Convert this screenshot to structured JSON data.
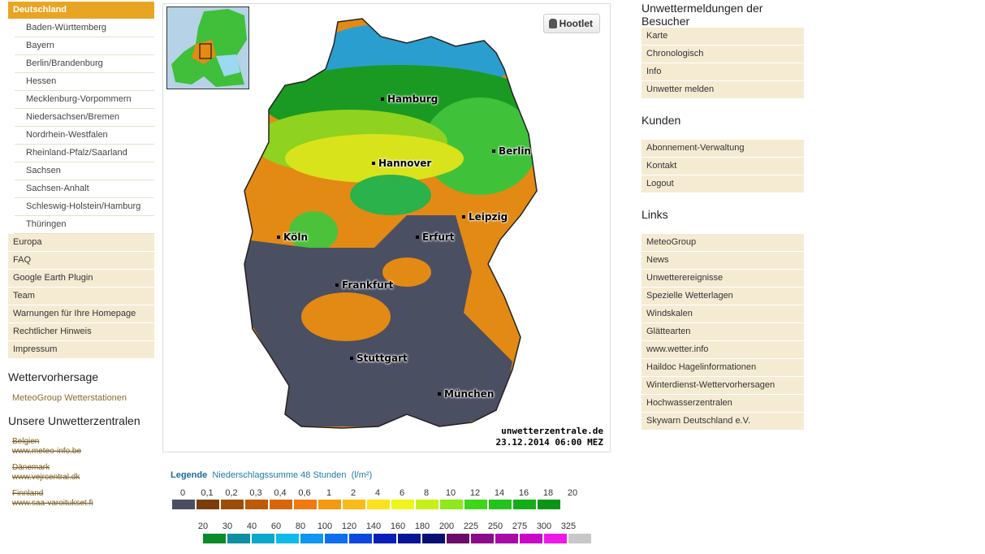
{
  "left_nav": {
    "active": "Deutschland",
    "states": [
      "Baden-Württemberg",
      "Bayern",
      "Berlin/Brandenburg",
      "Hessen",
      "Mecklenburg-Vorpommern",
      "Niedersachsen/Bremen",
      "Nordrhein-Westfalen",
      "Rheinland-Pfalz/Saarland",
      "Sachsen",
      "Sachsen-Anhalt",
      "Schleswig-Holstein/Hamburg",
      "Thüringen"
    ],
    "items": [
      "Europa",
      "FAQ",
      "Google Earth Plugin",
      "Team",
      "Warnungen für Ihre Homepage",
      "Rechtlicher Hinweis",
      "Impressum"
    ]
  },
  "forecast": {
    "heading": "Wettervorhersage",
    "link": "MeteoGroup Wetterstationen"
  },
  "centers": {
    "heading": "Unsere Unwetterzentralen",
    "countries": [
      {
        "name": "Belgien",
        "url": "www.meteo-info.be"
      },
      {
        "name": "Dänemark",
        "url": "www.vejrcentral.dk"
      },
      {
        "name": "Finnland",
        "url": "www.saa-varoitukset.fi"
      }
    ]
  },
  "map": {
    "hootlet": "Hootlet",
    "cities": [
      "Hamburg",
      "Berlin",
      "Hannover",
      "Leipzig",
      "Köln",
      "Erfurt",
      "Frankfurt",
      "Stuttgart",
      "München"
    ],
    "source": "unwetterzentrale.de",
    "timestamp": "23.12.2014 06:00 MEZ"
  },
  "legend": {
    "title": "Legende",
    "subtitle": "Niederschlagssumme 48 Stunden",
    "unit": "(l/m²)",
    "row1_labels": [
      "0",
      "0,1",
      "0,2",
      "0,3",
      "0,4",
      "0,6",
      "1",
      "2",
      "4",
      "6",
      "8",
      "10",
      "12",
      "14",
      "16",
      "18",
      "20"
    ],
    "row1_colors": [
      "#4a4e63",
      "#7a3d0a",
      "#9e4d08",
      "#bd5a06",
      "#d8660a",
      "#f07a10",
      "#f59a10",
      "#f8bb18",
      "#fbe21c",
      "#eef51a",
      "#c6f01a",
      "#8ee81a",
      "#3fd61a",
      "#22c31a",
      "#14ad18",
      "#0c9514"
    ],
    "row2_labels": [
      "20",
      "30",
      "40",
      "60",
      "80",
      "100",
      "120",
      "140",
      "160",
      "180",
      "200",
      "225",
      "250",
      "275",
      "300",
      "325"
    ],
    "row2_colors": [
      "#0c8a2a",
      "#0f8fa0",
      "#0aa9cc",
      "#0dbaea",
      "#0e96f0",
      "#0d6ef0",
      "#0a48de",
      "#081fb8",
      "#071595",
      "#061072",
      "#6a0a6a",
      "#8c0a8c",
      "#a80aa8",
      "#c80ac8",
      "#ee18e8",
      "#c8c8c8"
    ]
  },
  "right": {
    "sections": [
      {
        "heading": "Unwettermeldungen der Besucher",
        "items": [
          "Karte",
          "Chronologisch",
          "Info",
          "Unwetter melden"
        ]
      },
      {
        "heading": "Kunden",
        "items": [
          "Abonnement-Verwaltung",
          "Kontakt",
          "Logout"
        ]
      },
      {
        "heading": "Links",
        "items": [
          "MeteoGroup",
          "News",
          "Unwetterereignisse",
          "Spezielle Wetterlagen",
          "Windskalen",
          "Glättearten",
          "www.wetter.info",
          "Haildoc Hagelinformationen",
          "Winterdienst-Wettervorhersagen",
          "Hochwasserzentralen",
          "Skywarn Deutschland e.V."
        ]
      }
    ]
  }
}
